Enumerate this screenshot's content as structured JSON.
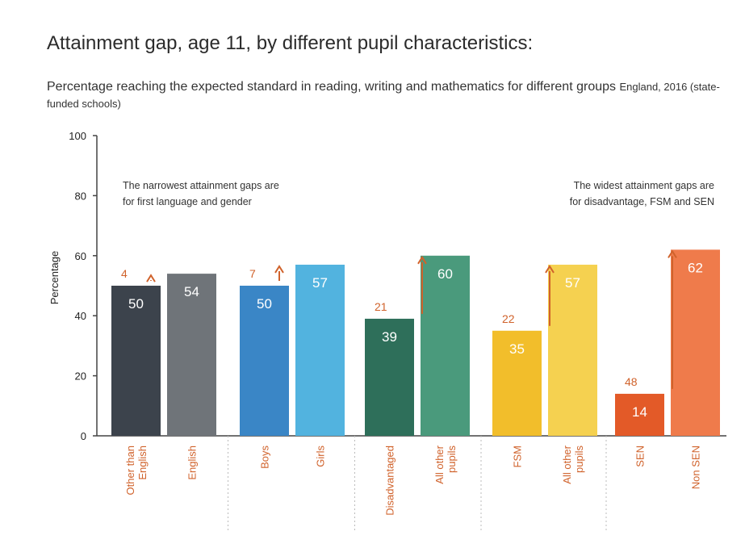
{
  "title": "Attainment gap, age 11, by different pupil characteristics:",
  "subtitle": {
    "main": "Percentage reaching the expected standard in reading, writing and mathematics for different groups",
    "small": "England, 2016 (state-funded schools)"
  },
  "annotations": {
    "left": [
      "The narrowest attainment gaps are",
      "for first language and gender"
    ],
    "right": [
      "The widest attainment gaps are",
      "for disadvantage, FSM and SEN"
    ]
  },
  "colors": {
    "gap_text": "#d0622b",
    "axis": "#444444",
    "separator": "#bbbbbb"
  },
  "chart_data": {
    "type": "bar",
    "ylabel": "Percentage",
    "ylim": [
      0,
      100
    ],
    "yticks": [
      0,
      20,
      40,
      60,
      80,
      100
    ],
    "grid": false,
    "groups": [
      {
        "gap": 4,
        "bars": [
          {
            "label": [
              "Other than",
              "English"
            ],
            "value": 50,
            "color": "#3c434c"
          },
          {
            "label": [
              "English"
            ],
            "value": 54,
            "color": "#6f7479"
          }
        ]
      },
      {
        "gap": 7,
        "bars": [
          {
            "label": [
              "Boys"
            ],
            "value": 50,
            "color": "#3a86c6"
          },
          {
            "label": [
              "Girls"
            ],
            "value": 57,
            "color": "#52b3df"
          }
        ]
      },
      {
        "gap": 21,
        "bars": [
          {
            "label": [
              "Disadvantaged"
            ],
            "value": 39,
            "color": "#2e6f5a"
          },
          {
            "label": [
              "All other",
              "pupils"
            ],
            "value": 60,
            "color": "#4a9a7c"
          }
        ]
      },
      {
        "gap": 22,
        "bars": [
          {
            "label": [
              "FSM"
            ],
            "value": 35,
            "color": "#f2be2b"
          },
          {
            "label": [
              "All other",
              "pupils"
            ],
            "value": 57,
            "color": "#f5d150"
          }
        ]
      },
      {
        "gap": 48,
        "bars": [
          {
            "label": [
              "SEN"
            ],
            "value": 14,
            "color": "#e35a28"
          },
          {
            "label": [
              "Non SEN"
            ],
            "value": 62,
            "color": "#ef7b4b"
          }
        ]
      }
    ]
  }
}
